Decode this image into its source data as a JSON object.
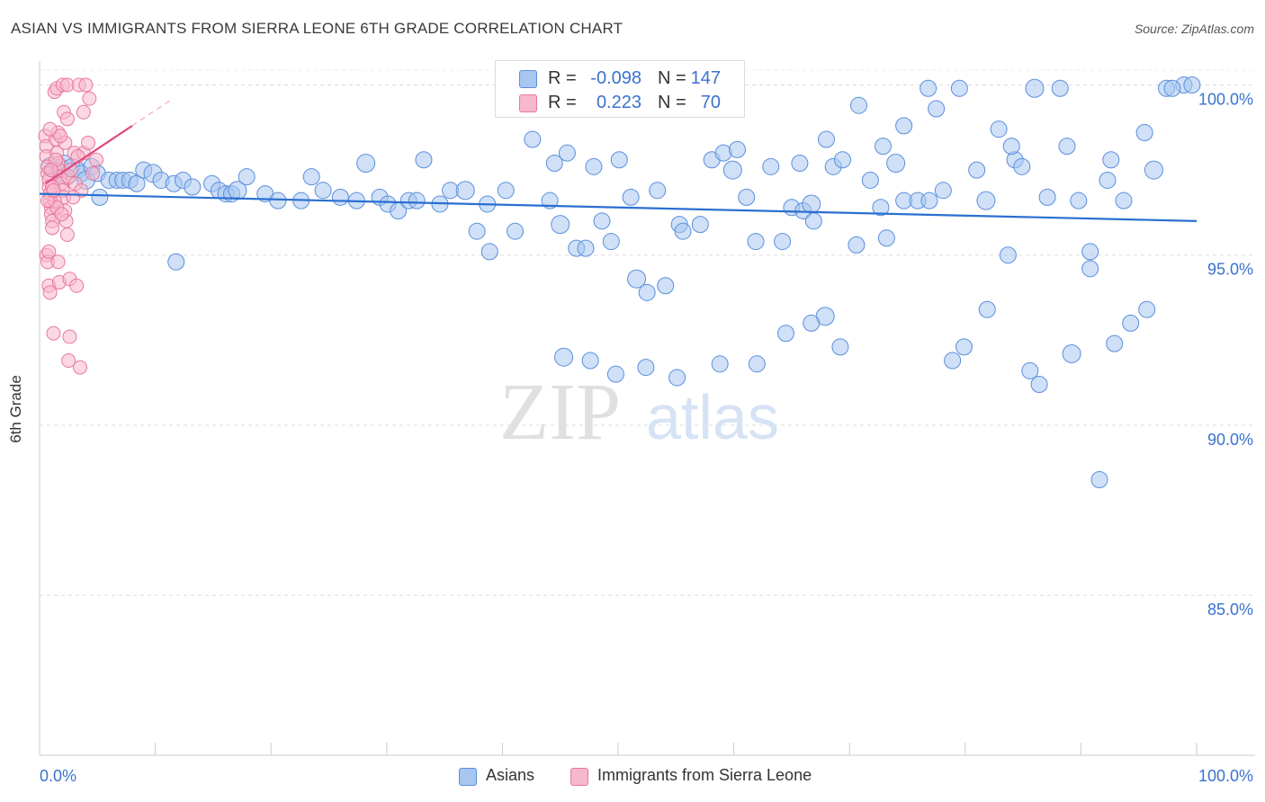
{
  "title": "ASIAN VS IMMIGRANTS FROM SIERRA LEONE 6TH GRADE CORRELATION CHART",
  "source": "Source: ZipAtlas.com",
  "watermark": {
    "zip": "ZIP",
    "atlas": "atlas"
  },
  "legend": {
    "r_label": "R =",
    "n_label": "N =",
    "series": [
      {
        "name": "Asians",
        "r": "-0.098",
        "n": "147",
        "color": "#a7c6f0",
        "stroke": "#5b8fdc"
      },
      {
        "name": "Immigrants from Sierra Leone",
        "r": "0.223",
        "n": "70",
        "color": "#f8b8cc",
        "stroke": "#e8779c"
      }
    ]
  },
  "chart_data": {
    "type": "scatter",
    "title": "ASIAN VS IMMIGRANTS FROM SIERRA LEONE 6TH GRADE CORRELATION CHART",
    "xlabel": "",
    "ylabel": "6th Grade",
    "xlim": [
      0,
      100
    ],
    "ylim": [
      80.3,
      100.7
    ],
    "x_tick_labels": [
      "0.0%",
      "100.0%"
    ],
    "y_ticks": [
      100,
      95,
      90,
      85
    ],
    "y_tick_labels": [
      "100.0%",
      "95.0%",
      "90.0%",
      "85.0%"
    ],
    "grid": true,
    "legend_position": "top-center",
    "series": [
      {
        "name": "Asians",
        "color": "#a7c6f0",
        "stroke": "#5b8fdc",
        "trend": {
          "x": [
            0,
            100
          ],
          "y": [
            96.8,
            96.0
          ],
          "color": "#2a6fd0"
        },
        "points": [
          [
            0.9,
            97.6
          ],
          [
            1.3,
            97.5
          ],
          [
            1.6,
            97.4
          ],
          [
            1.8,
            97.6
          ],
          [
            2.1,
            97.7
          ],
          [
            2.4,
            97.3
          ],
          [
            2.8,
            97.6
          ],
          [
            3.3,
            97.5
          ],
          [
            3.6,
            97.4
          ],
          [
            4.0,
            97.2
          ],
          [
            4.5,
            97.6
          ],
          [
            5.0,
            97.4
          ],
          [
            6.0,
            97.2
          ],
          [
            6.7,
            97.2
          ],
          [
            7.2,
            97.2
          ],
          [
            7.8,
            97.2
          ],
          [
            8.4,
            97.1
          ],
          [
            9.0,
            97.5
          ],
          [
            9.8,
            97.4
          ],
          [
            10.5,
            97.2
          ],
          [
            11.6,
            97.1
          ],
          [
            12.4,
            97.2
          ],
          [
            13.2,
            97.0
          ],
          [
            14.9,
            97.1
          ],
          [
            15.5,
            96.9
          ],
          [
            16.1,
            96.8
          ],
          [
            16.6,
            96.8
          ],
          [
            17.1,
            96.9
          ],
          [
            17.9,
            97.3
          ],
          [
            19.5,
            96.8
          ],
          [
            20.6,
            96.6
          ],
          [
            22.6,
            96.6
          ],
          [
            23.5,
            97.3
          ],
          [
            24.5,
            96.9
          ],
          [
            26.0,
            96.7
          ],
          [
            27.4,
            96.6
          ],
          [
            28.2,
            97.7
          ],
          [
            29.4,
            96.7
          ],
          [
            30.1,
            96.5
          ],
          [
            31.0,
            96.3
          ],
          [
            31.9,
            96.6
          ],
          [
            32.6,
            96.6
          ],
          [
            33.2,
            97.8
          ],
          [
            34.6,
            96.5
          ],
          [
            35.5,
            96.9
          ],
          [
            36.8,
            96.9
          ],
          [
            37.8,
            95.7
          ],
          [
            38.7,
            96.5
          ],
          [
            38.9,
            95.1
          ],
          [
            40.3,
            96.9
          ],
          [
            41.1,
            95.7
          ],
          [
            42.6,
            98.4
          ],
          [
            44.1,
            96.6
          ],
          [
            44.5,
            97.7
          ],
          [
            45.0,
            95.9
          ],
          [
            45.6,
            98.0
          ],
          [
            46.4,
            95.2
          ],
          [
            47.2,
            95.2
          ],
          [
            47.9,
            97.6
          ],
          [
            48.6,
            96.0
          ],
          [
            49.4,
            95.4
          ],
          [
            50.1,
            97.8
          ],
          [
            51.1,
            96.7
          ],
          [
            51.6,
            94.3
          ],
          [
            52.5,
            93.9
          ],
          [
            53.4,
            96.9
          ],
          [
            54.1,
            94.1
          ],
          [
            55.3,
            95.9
          ],
          [
            55.6,
            95.7
          ],
          [
            57.1,
            95.9
          ],
          [
            58.1,
            97.8
          ],
          [
            59.1,
            98.0
          ],
          [
            59.9,
            97.5
          ],
          [
            60.3,
            98.1
          ],
          [
            61.1,
            96.7
          ],
          [
            61.9,
            95.4
          ],
          [
            63.2,
            97.6
          ],
          [
            64.2,
            95.4
          ],
          [
            65.0,
            96.4
          ],
          [
            65.7,
            97.7
          ],
          [
            66.0,
            96.3
          ],
          [
            66.7,
            96.5
          ],
          [
            66.9,
            96.0
          ],
          [
            68.0,
            98.4
          ],
          [
            68.6,
            97.6
          ],
          [
            69.4,
            97.8
          ],
          [
            70.6,
            95.3
          ],
          [
            71.8,
            97.2
          ],
          [
            72.7,
            96.4
          ],
          [
            73.2,
            95.5
          ],
          [
            74.0,
            97.7
          ],
          [
            74.7,
            96.6
          ],
          [
            75.9,
            96.6
          ],
          [
            76.9,
            96.6
          ],
          [
            77.5,
            99.3
          ],
          [
            78.1,
            96.9
          ],
          [
            78.9,
            91.9
          ],
          [
            79.9,
            92.3
          ],
          [
            81.0,
            97.5
          ],
          [
            81.8,
            96.6
          ],
          [
            82.9,
            98.7
          ],
          [
            83.7,
            95.0
          ],
          [
            84.3,
            97.8
          ],
          [
            84.9,
            97.6
          ],
          [
            85.6,
            91.6
          ],
          [
            86.4,
            91.2
          ],
          [
            87.1,
            96.7
          ],
          [
            88.8,
            98.2
          ],
          [
            89.2,
            92.1
          ],
          [
            89.8,
            96.6
          ],
          [
            90.8,
            94.6
          ],
          [
            91.6,
            88.4
          ],
          [
            92.3,
            97.2
          ],
          [
            92.9,
            92.4
          ],
          [
            93.7,
            96.6
          ],
          [
            94.3,
            93.0
          ],
          [
            95.5,
            98.6
          ],
          [
            96.3,
            97.5
          ],
          [
            97.4,
            99.9
          ],
          [
            98.9,
            100.0
          ],
          [
            99.6,
            100.0
          ],
          [
            97.9,
            99.9
          ],
          [
            95.7,
            93.4
          ],
          [
            92.6,
            97.8
          ],
          [
            90.8,
            95.1
          ],
          [
            88.2,
            99.9
          ],
          [
            86.0,
            99.9
          ],
          [
            84.0,
            98.2
          ],
          [
            81.9,
            93.4
          ],
          [
            79.5,
            99.9
          ],
          [
            76.8,
            99.9
          ],
          [
            74.7,
            98.8
          ],
          [
            72.9,
            98.2
          ],
          [
            70.8,
            99.4
          ],
          [
            69.2,
            92.3
          ],
          [
            67.9,
            93.2
          ],
          [
            66.7,
            93.0
          ],
          [
            64.5,
            92.7
          ],
          [
            62.0,
            91.8
          ],
          [
            58.8,
            91.8
          ],
          [
            55.1,
            91.4
          ],
          [
            52.4,
            91.7
          ],
          [
            49.8,
            91.5
          ],
          [
            47.6,
            91.9
          ],
          [
            45.3,
            92.0
          ],
          [
            5.2,
            96.7
          ],
          [
            11.8,
            94.8
          ]
        ]
      },
      {
        "name": "Immigrants from Sierra Leone",
        "color": "#f8b8cc",
        "stroke": "#e8779c",
        "trend": {
          "x": [
            0.5,
            8.0
          ],
          "y": [
            97.1,
            98.8
          ],
          "color": "#e04a7d"
        },
        "points": [
          [
            0.5,
            98.5
          ],
          [
            0.6,
            98.2
          ],
          [
            0.6,
            97.9
          ],
          [
            0.7,
            97.6
          ],
          [
            0.7,
            97.4
          ],
          [
            0.8,
            97.2
          ],
          [
            0.8,
            97.0
          ],
          [
            0.9,
            96.8
          ],
          [
            0.9,
            96.6
          ],
          [
            1.0,
            96.4
          ],
          [
            1.0,
            96.2
          ],
          [
            1.1,
            96.0
          ],
          [
            1.1,
            95.8
          ],
          [
            0.6,
            95.0
          ],
          [
            0.7,
            94.8
          ],
          [
            0.8,
            94.1
          ],
          [
            0.9,
            93.9
          ],
          [
            1.2,
            92.7
          ],
          [
            1.4,
            98.4
          ],
          [
            1.5,
            98.0
          ],
          [
            1.6,
            97.7
          ],
          [
            1.7,
            97.5
          ],
          [
            1.8,
            97.3
          ],
          [
            1.9,
            97.1
          ],
          [
            2.0,
            96.9
          ],
          [
            2.1,
            96.7
          ],
          [
            2.2,
            96.3
          ],
          [
            2.3,
            96.0
          ],
          [
            2.4,
            95.6
          ],
          [
            1.3,
            99.8
          ],
          [
            1.5,
            99.9
          ],
          [
            2.0,
            100.0
          ],
          [
            2.4,
            100.0
          ],
          [
            3.4,
            100.0
          ],
          [
            4.0,
            100.0
          ],
          [
            4.3,
            99.6
          ],
          [
            2.1,
            99.2
          ],
          [
            2.4,
            99.0
          ],
          [
            3.8,
            99.2
          ],
          [
            1.6,
            98.6
          ],
          [
            2.2,
            98.3
          ],
          [
            3.0,
            98.0
          ],
          [
            3.8,
            98.0
          ],
          [
            4.9,
            97.8
          ],
          [
            1.1,
            97.0
          ],
          [
            1.3,
            96.6
          ],
          [
            1.5,
            96.4
          ],
          [
            1.9,
            96.2
          ],
          [
            2.5,
            97.3
          ],
          [
            3.1,
            97.1
          ],
          [
            3.6,
            96.9
          ],
          [
            0.8,
            95.1
          ],
          [
            1.6,
            94.8
          ],
          [
            1.7,
            94.2
          ],
          [
            2.6,
            94.3
          ],
          [
            2.6,
            92.6
          ],
          [
            2.5,
            91.9
          ],
          [
            3.5,
            91.7
          ],
          [
            3.2,
            94.1
          ],
          [
            0.7,
            96.6
          ],
          [
            1.2,
            96.9
          ],
          [
            1.4,
            97.8
          ],
          [
            2.7,
            97.5
          ],
          [
            3.3,
            97.9
          ],
          [
            4.2,
            98.3
          ],
          [
            4.6,
            97.4
          ],
          [
            0.9,
            98.7
          ],
          [
            1.8,
            98.5
          ],
          [
            2.9,
            96.7
          ],
          [
            1.0,
            97.5
          ]
        ]
      }
    ]
  }
}
